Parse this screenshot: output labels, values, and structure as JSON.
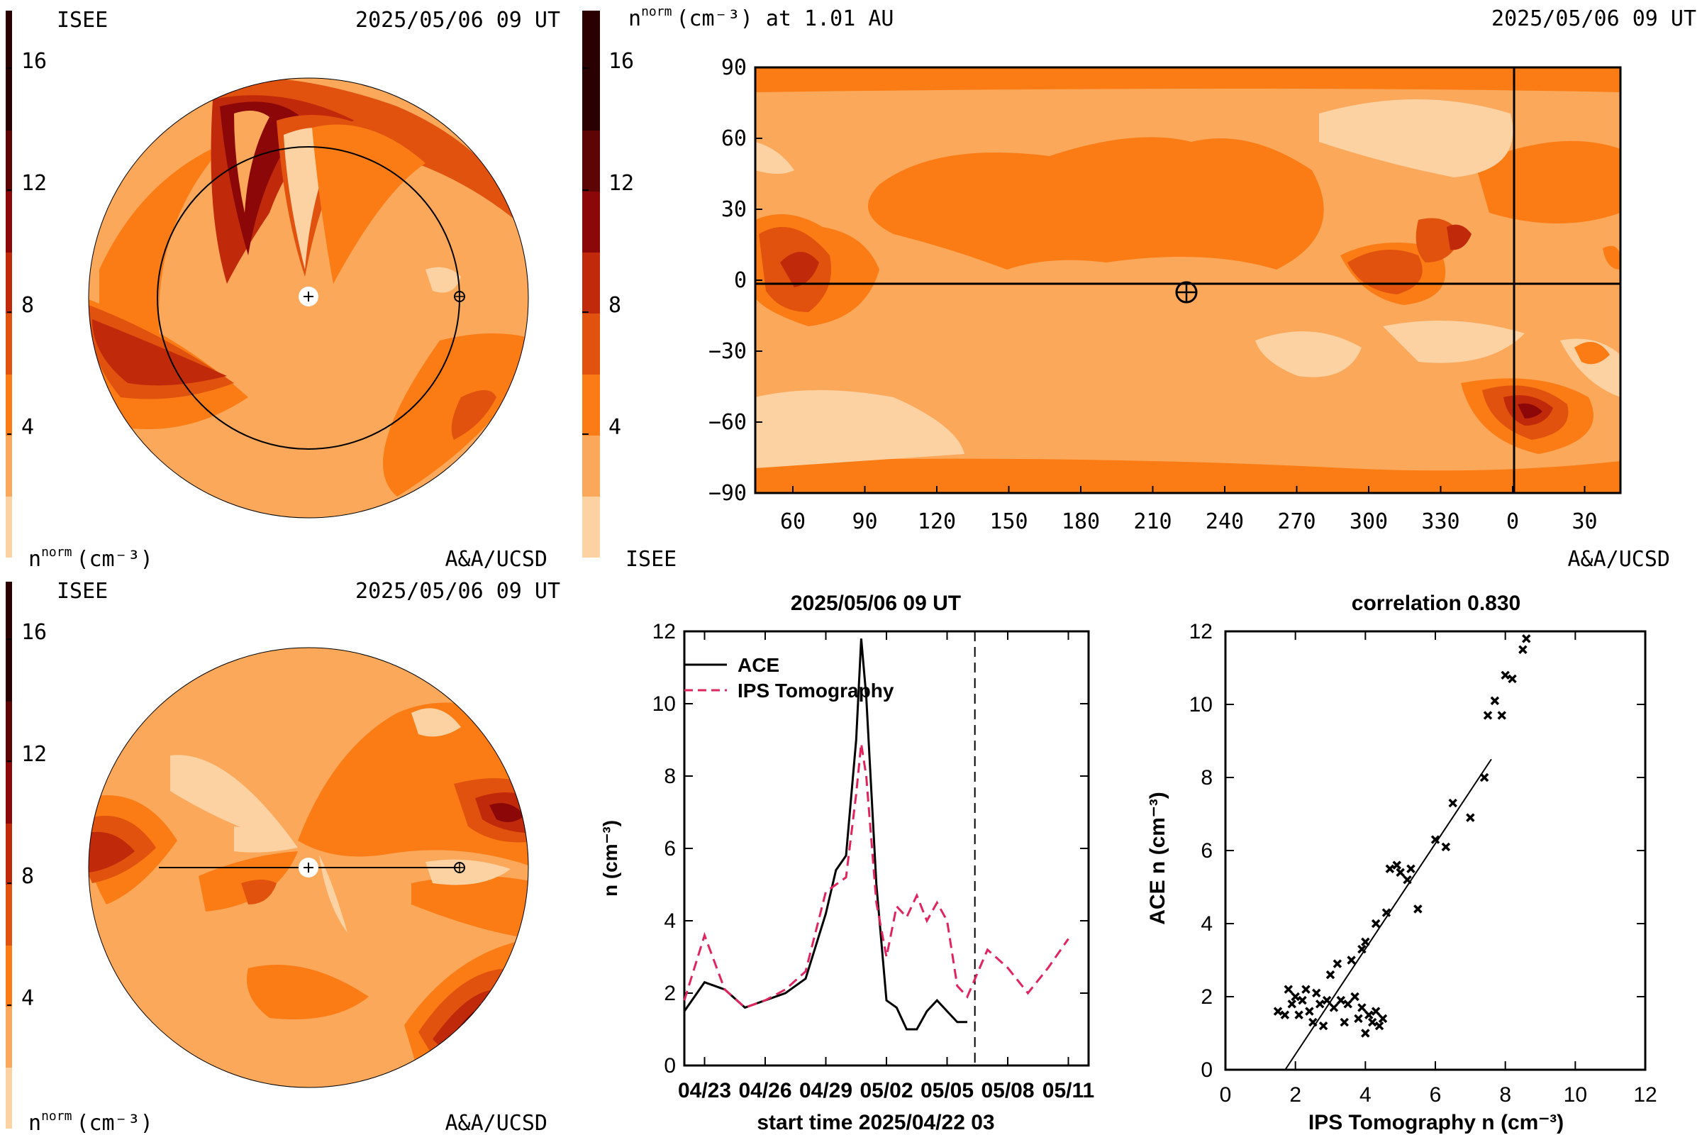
{
  "colors": {
    "levels": [
      "#fcd2a3",
      "#fba85a",
      "#fb7b14",
      "#e0520e",
      "#c1290b",
      "#8c0808",
      "#5d0505",
      "#2a0000"
    ],
    "sw_blue": "#1b33b0",
    "ips_red": "#e0245e",
    "axis": "#000000"
  },
  "colorbar": {
    "ticks": [
      "4",
      "8",
      "12",
      "16"
    ]
  },
  "panel_top_left": {
    "org_label": "ISEE",
    "timestamp": "2025/05/06 09 UT",
    "unit_label_base": "n",
    "unit_label_sup": "norm",
    "unit_label_rest": "(cm⁻³)",
    "credit": "A&A/UCSD"
  },
  "panel_top_right": {
    "title_base": "n",
    "title_sup": "norm",
    "title_rest": "(cm⁻³) at 1.01 AU",
    "timestamp": "2025/05/06 09 UT",
    "org_label": "ISEE",
    "credit": "A&A/UCSD",
    "y_ticks": [
      "90",
      "60",
      "30",
      "0",
      "−30",
      "−60",
      "−90"
    ],
    "x_ticks": [
      "60",
      "90",
      "120",
      "150",
      "180",
      "210",
      "240",
      "270",
      "300",
      "330",
      "0",
      "30"
    ]
  },
  "panel_bottom_left": {
    "org_label": "ISEE",
    "timestamp": "2025/05/06 09 UT",
    "unit_label_base": "n",
    "unit_label_sup": "norm",
    "unit_label_rest": "(cm⁻³)",
    "credit": "A&A/UCSD"
  },
  "chart_data": [
    {
      "type": "line",
      "title": "2025/05/06 09 UT",
      "xlabel": "start time 2025/04/22 03",
      "ylabel": "n (cm⁻³)",
      "ylim": [
        0,
        12
      ],
      "xlim": [
        "2025-04-22",
        "2025-05-12"
      ],
      "x_tick_labels": [
        "04/23",
        "04/26",
        "04/29",
        "05/02",
        "05/05",
        "05/08",
        "05/11"
      ],
      "y_tick_labels": [
        "0",
        "2",
        "4",
        "6",
        "8",
        "10",
        "12"
      ],
      "vline_date": "2025-05-06 09:00",
      "legend": "top-left",
      "series": [
        {
          "name": "ACE",
          "style": "solid",
          "points": [
            [
              "04/22",
              1.5
            ],
            [
              "04/23",
              2.3
            ],
            [
              "04/24",
              2.1
            ],
            [
              "04/25",
              1.6
            ],
            [
              "04/26",
              1.8
            ],
            [
              "04/27",
              2.0
            ],
            [
              "04/28",
              2.4
            ],
            [
              "04/29",
              4.2
            ],
            [
              "04/29 12",
              5.4
            ],
            [
              "04/30",
              5.8
            ],
            [
              "04/30 12",
              9.0
            ],
            [
              "04/30 18",
              11.8
            ],
            [
              "05/01",
              10.2
            ],
            [
              "05/01 12",
              5.0
            ],
            [
              "05/02",
              1.8
            ],
            [
              "05/02 12",
              1.6
            ],
            [
              "05/03",
              1.0
            ],
            [
              "05/03 12",
              1.0
            ],
            [
              "05/04",
              1.5
            ],
            [
              "05/04 12",
              1.8
            ],
            [
              "05/05",
              1.5
            ],
            [
              "05/05 12",
              1.2
            ],
            [
              "05/06",
              1.2
            ]
          ]
        },
        {
          "name": "IPS Tomography",
          "style": "dashed",
          "points": [
            [
              "04/22",
              1.8
            ],
            [
              "04/23",
              3.6
            ],
            [
              "04/24",
              2.1
            ],
            [
              "04/25",
              1.6
            ],
            [
              "04/26",
              1.8
            ],
            [
              "04/27",
              2.1
            ],
            [
              "04/28",
              2.6
            ],
            [
              "04/29",
              4.8
            ],
            [
              "04/29 12",
              5.0
            ],
            [
              "04/30",
              5.2
            ],
            [
              "04/30 12",
              7.5
            ],
            [
              "04/30 18",
              8.9
            ],
            [
              "05/01",
              8.0
            ],
            [
              "05/01 12",
              4.5
            ],
            [
              "05/02",
              3.0
            ],
            [
              "05/02 12",
              4.4
            ],
            [
              "05/03",
              4.1
            ],
            [
              "05/03 12",
              4.7
            ],
            [
              "05/04",
              4.0
            ],
            [
              "05/04 12",
              4.5
            ],
            [
              "05/05",
              4.0
            ],
            [
              "05/05 12",
              2.2
            ],
            [
              "05/06",
              1.9
            ],
            [
              "05/07",
              3.2
            ],
            [
              "05/08",
              2.7
            ],
            [
              "05/09",
              2.0
            ],
            [
              "05/10",
              2.7
            ],
            [
              "05/11",
              3.5
            ]
          ]
        }
      ]
    },
    {
      "type": "scatter",
      "title": "correlation 0.830",
      "xlabel": "IPS Tomography n (cm⁻³)",
      "ylabel": "ACE n (cm⁻³)",
      "xlim": [
        0,
        12
      ],
      "ylim": [
        0,
        12
      ],
      "x_tick_labels": [
        "0",
        "2",
        "4",
        "6",
        "8",
        "10",
        "12"
      ],
      "y_tick_labels": [
        "0",
        "2",
        "4",
        "6",
        "8",
        "10",
        "12"
      ],
      "fit_line": [
        [
          1.5,
          -0.3
        ],
        [
          7.6,
          8.5
        ]
      ],
      "points": [
        [
          1.5,
          1.6
        ],
        [
          1.7,
          1.5
        ],
        [
          1.8,
          2.2
        ],
        [
          1.9,
          1.8
        ],
        [
          2.0,
          2.0
        ],
        [
          2.1,
          1.5
        ],
        [
          2.2,
          1.9
        ],
        [
          2.3,
          2.2
        ],
        [
          2.4,
          1.6
        ],
        [
          2.5,
          1.3
        ],
        [
          2.6,
          2.1
        ],
        [
          2.7,
          1.8
        ],
        [
          2.8,
          1.2
        ],
        [
          2.9,
          1.9
        ],
        [
          3.0,
          2.6
        ],
        [
          3.1,
          1.7
        ],
        [
          3.2,
          2.9
        ],
        [
          3.3,
          1.9
        ],
        [
          3.4,
          1.3
        ],
        [
          3.5,
          1.8
        ],
        [
          3.6,
          3.0
        ],
        [
          3.7,
          2.0
        ],
        [
          3.8,
          1.4
        ],
        [
          3.9,
          1.7
        ],
        [
          4.0,
          1.0
        ],
        [
          4.1,
          1.5
        ],
        [
          4.2,
          1.3
        ],
        [
          4.3,
          1.6
        ],
        [
          4.4,
          1.2
        ],
        [
          4.5,
          1.4
        ],
        [
          3.9,
          3.3
        ],
        [
          4.0,
          3.5
        ],
        [
          4.3,
          4.0
        ],
        [
          4.6,
          4.3
        ],
        [
          4.7,
          5.5
        ],
        [
          4.9,
          5.6
        ],
        [
          5.0,
          5.4
        ],
        [
          5.2,
          5.2
        ],
        [
          5.3,
          5.5
        ],
        [
          5.5,
          4.4
        ],
        [
          6.0,
          6.3
        ],
        [
          6.3,
          6.1
        ],
        [
          6.5,
          7.3
        ],
        [
          7.0,
          6.9
        ],
        [
          7.4,
          8.0
        ],
        [
          7.5,
          9.7
        ],
        [
          7.7,
          10.1
        ],
        [
          7.9,
          9.7
        ],
        [
          8.0,
          10.8
        ],
        [
          8.2,
          10.7
        ],
        [
          8.5,
          11.5
        ],
        [
          8.6,
          11.8
        ]
      ]
    }
  ]
}
